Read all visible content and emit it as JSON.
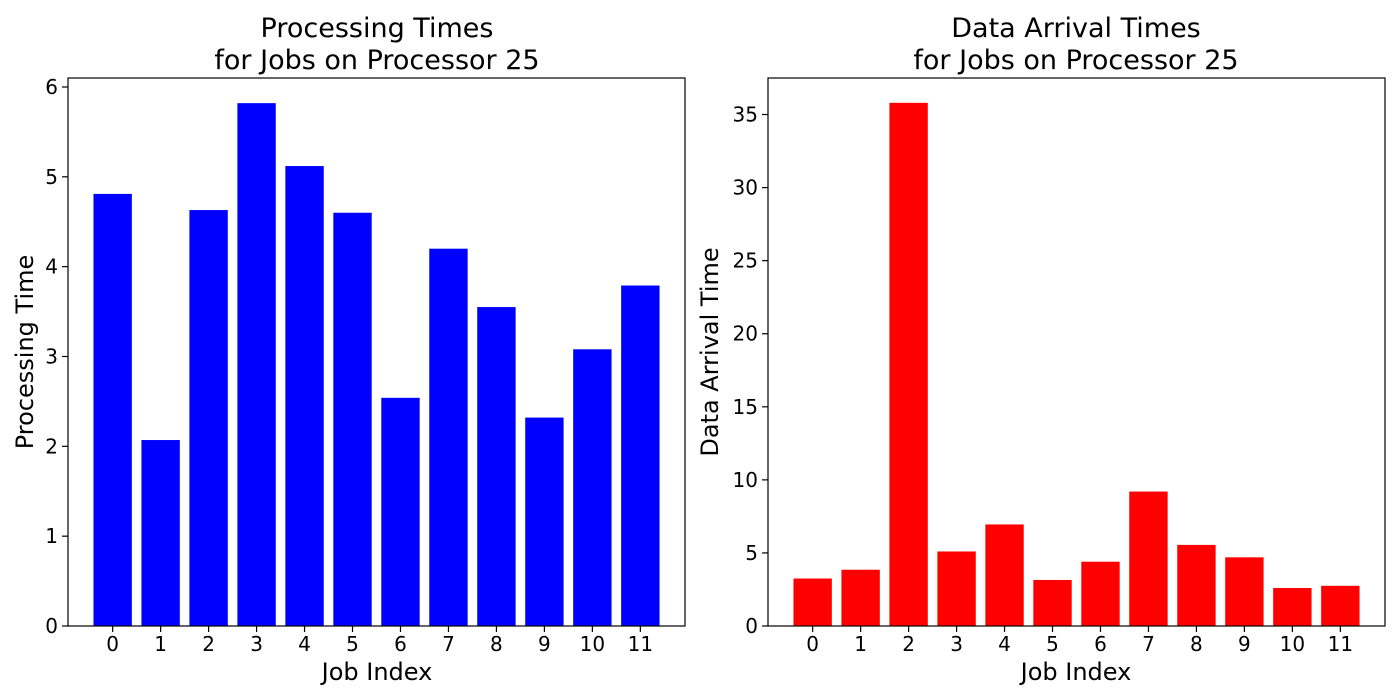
{
  "chart_data": [
    {
      "type": "bar",
      "title_lines": [
        "Processing Times",
        "for Jobs on Processor 25"
      ],
      "xlabel": "Job Index",
      "ylabel": "Processing Time",
      "categories": [
        "0",
        "1",
        "2",
        "3",
        "4",
        "5",
        "6",
        "7",
        "8",
        "9",
        "10",
        "11"
      ],
      "values": [
        4.81,
        2.07,
        4.63,
        5.82,
        5.12,
        4.6,
        2.54,
        4.2,
        3.55,
        2.32,
        3.08,
        3.79
      ],
      "ylim": [
        0,
        6.1
      ],
      "yticks": [
        "0",
        "1",
        "2",
        "3",
        "4",
        "5",
        "6"
      ],
      "bar_color": "#0000ff",
      "grid": false
    },
    {
      "type": "bar",
      "title_lines": [
        "Data Arrival Times",
        "for Jobs on Processor 25"
      ],
      "xlabel": "Job Index",
      "ylabel": "Data Arrival Time",
      "categories": [
        "0",
        "1",
        "2",
        "3",
        "4",
        "5",
        "6",
        "7",
        "8",
        "9",
        "10",
        "11"
      ],
      "values": [
        3.25,
        3.85,
        35.8,
        5.1,
        6.95,
        3.15,
        4.4,
        9.2,
        5.55,
        4.7,
        2.6,
        2.75
      ],
      "ylim": [
        0,
        37.5
      ],
      "yticks": [
        "0",
        "5",
        "10",
        "15",
        "20",
        "25",
        "30",
        "35"
      ],
      "bar_color": "#ff0000",
      "grid": false
    }
  ]
}
